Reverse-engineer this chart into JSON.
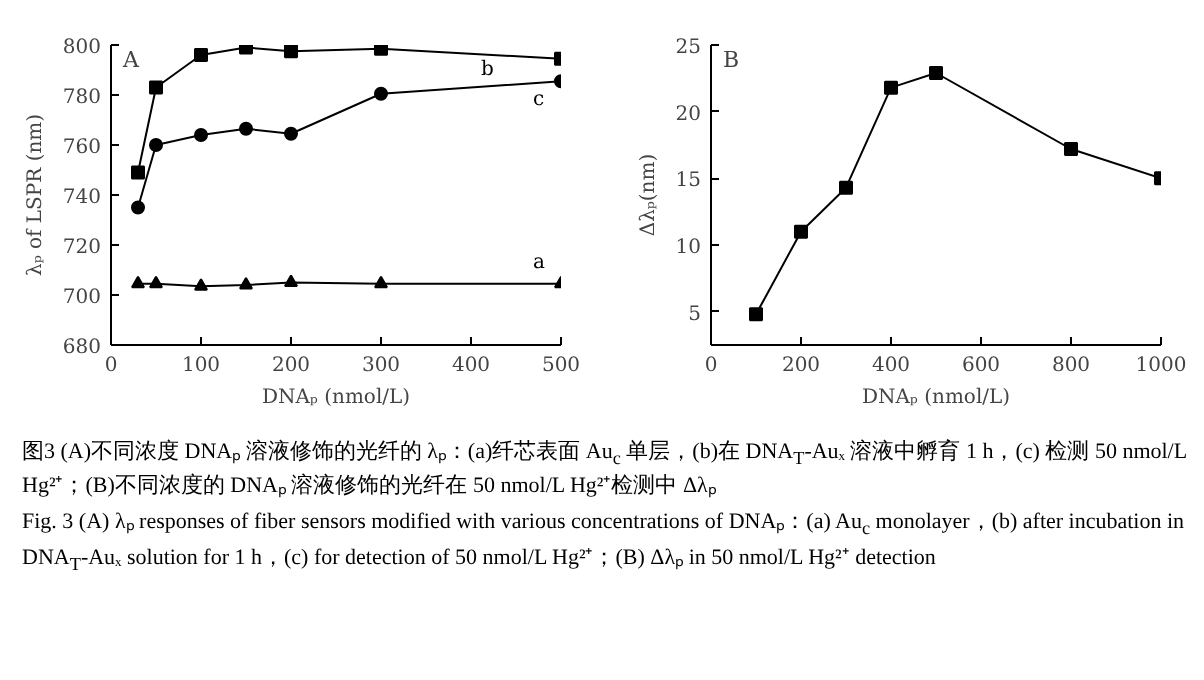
{
  "chart_data": [
    {
      "type": "line",
      "xlabel": "DNAₚ (nmol/L)",
      "ylabel": "λₚ of LSPR (nm)",
      "annotations": [
        "A"
      ],
      "x": [
        30,
        50,
        100,
        150,
        200,
        300,
        500
      ],
      "xlim": [
        0,
        500
      ],
      "xticks": [
        0,
        100,
        200,
        300,
        400,
        500
      ],
      "ylim": [
        680,
        800
      ],
      "yticks": [
        680,
        700,
        720,
        740,
        760,
        780,
        800
      ],
      "grid": false,
      "legend": false,
      "series": [
        {
          "name": "b",
          "color": "#000000",
          "marker": "square",
          "values": [
            749,
            783,
            796,
            799,
            797.5,
            798.5,
            794.5
          ]
        },
        {
          "name": "c",
          "color": "#000000",
          "marker": "circle",
          "values": [
            735,
            760,
            764,
            766.5,
            764.5,
            780.5,
            785.5
          ]
        },
        {
          "name": "a",
          "color": "#000000",
          "marker": "triangle",
          "values": [
            704.5,
            704.5,
            703.5,
            704,
            705,
            704.5,
            704.5
          ]
        }
      ]
    },
    {
      "type": "line",
      "xlabel": "DNAₚ (nmol/L)",
      "ylabel": "Δλₚ(nm)",
      "annotations": [
        "B"
      ],
      "x": [
        100,
        200,
        300,
        400,
        500,
        800,
        1000
      ],
      "xlim": [
        0,
        1000
      ],
      "xticks": [
        0,
        200,
        400,
        600,
        800,
        1000
      ],
      "ylim": [
        2.5,
        25
      ],
      "yticks": [
        5,
        10,
        15,
        20,
        25
      ],
      "grid": false,
      "legend": false,
      "marker": "square",
      "series": [
        {
          "color": "#000000",
          "values": [
            4.8,
            11,
            14.3,
            21.8,
            22.9,
            17.2,
            15
          ]
        }
      ]
    },
    {
      "type": "other",
      "annotations": [
        "图3 (A)不同浓度 DNAₚ 溶液修饰的光纤的 λₚ：(a)纤芯表面 Au$_{c}$ 单层，(b)在 DNA$_{T}$-Auₓ 溶液中孵育 1 h，(c) 检测 50 nmol/L Hg²⁺；(B)不同浓度的 DNAₚ 溶液修饰的光纤在 50 nmol/L Hg²⁺检测中 Δλₚ",
        "Fig. 3 (A) λₚ responses of fiber sensors modified with various concentrations of DNAₚ：(a) Au$_{c}$ monolayer，(b) after incubation in DNA$_{T}$-Auₓ solution for 1 h，(c) for detection of 50 nmol/L Hg²⁺；(B) Δλₚ in 50 nmol/L Hg²⁺ detection"
      ]
    }
  ]
}
